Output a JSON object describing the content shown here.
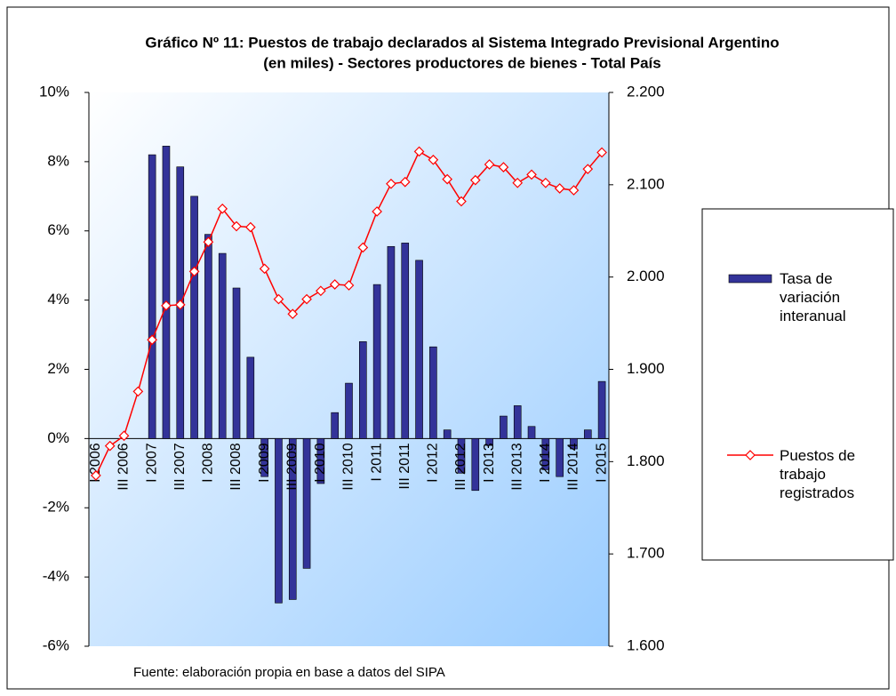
{
  "chart_data": {
    "type": "bar-line",
    "title": "Gráfico Nº 11: Puestos de trabajo declarados al Sistema Integrado Previsional Argentino",
    "subtitle": "(en miles) - Sectores productores de bienes  - Total País",
    "source": "Fuente: elaboración propia en base a datos del SIPA",
    "categories": [
      "I 2006",
      null,
      "III 2006",
      null,
      "I 2007",
      null,
      "III 2007",
      null,
      "I 2008",
      null,
      "III 2008",
      null,
      "I 2009",
      null,
      "III 2009",
      null,
      "I 2010",
      null,
      "III 2010",
      null,
      "I 2011",
      null,
      "III 2011",
      null,
      "I 2012",
      null,
      "III 2012",
      null,
      "I 2013",
      null,
      "III 2013",
      null,
      "I 2014",
      null,
      "III 2014",
      null,
      "I 2015"
    ],
    "series": [
      {
        "name": "Tasa de variación interanual",
        "color": "#333399",
        "axis": "y",
        "values": [
          null,
          null,
          null,
          null,
          8.2,
          8.45,
          7.85,
          7.0,
          5.9,
          5.35,
          4.35,
          2.35,
          -1.1,
          -4.75,
          -4.65,
          -3.75,
          -1.3,
          0.75,
          1.6,
          2.8,
          4.45,
          5.55,
          5.65,
          5.15,
          2.65,
          0.25,
          -1.0,
          -1.5,
          -0.2,
          0.65,
          0.95,
          0.35,
          -0.9,
          -1.1,
          -0.3,
          0.25,
          1.65
        ]
      },
      {
        "name": "Puestos de trabajo registrados",
        "color": "#ff0000",
        "axis": "y2",
        "values": [
          1785,
          1817,
          1828,
          1876,
          1932,
          1969,
          1970,
          2006,
          2038,
          2074,
          2055,
          2054,
          2009,
          1976,
          1960,
          1976,
          1985,
          1992,
          1991,
          2032,
          2071,
          2101,
          2103,
          2136,
          2127,
          2106,
          2082,
          2105,
          2122,
          2119,
          2102,
          2111,
          2102,
          2096,
          2094,
          2117,
          2135
        ]
      }
    ],
    "ylim": [
      -6,
      10
    ],
    "yticks": [
      {
        "value": -6,
        "label": "-6%"
      },
      {
        "value": -4,
        "label": "-4%"
      },
      {
        "value": -2,
        "label": "-2%"
      },
      {
        "value": 0,
        "label": "0%"
      },
      {
        "value": 2,
        "label": "2%"
      },
      {
        "value": 4,
        "label": "4%"
      },
      {
        "value": 6,
        "label": "6%"
      },
      {
        "value": 8,
        "label": "8%"
      },
      {
        "value": 10,
        "label": "10%"
      }
    ],
    "y2lim": [
      1600,
      2200
    ],
    "y2ticks": [
      {
        "value": 1600,
        "label": "1.600"
      },
      {
        "value": 1700,
        "label": "1.700"
      },
      {
        "value": 1800,
        "label": "1.800"
      },
      {
        "value": 1900,
        "label": "1.900"
      },
      {
        "value": 2000,
        "label": "2.000"
      },
      {
        "value": 2100,
        "label": "2.100"
      },
      {
        "value": 2200,
        "label": "2.200"
      }
    ]
  }
}
